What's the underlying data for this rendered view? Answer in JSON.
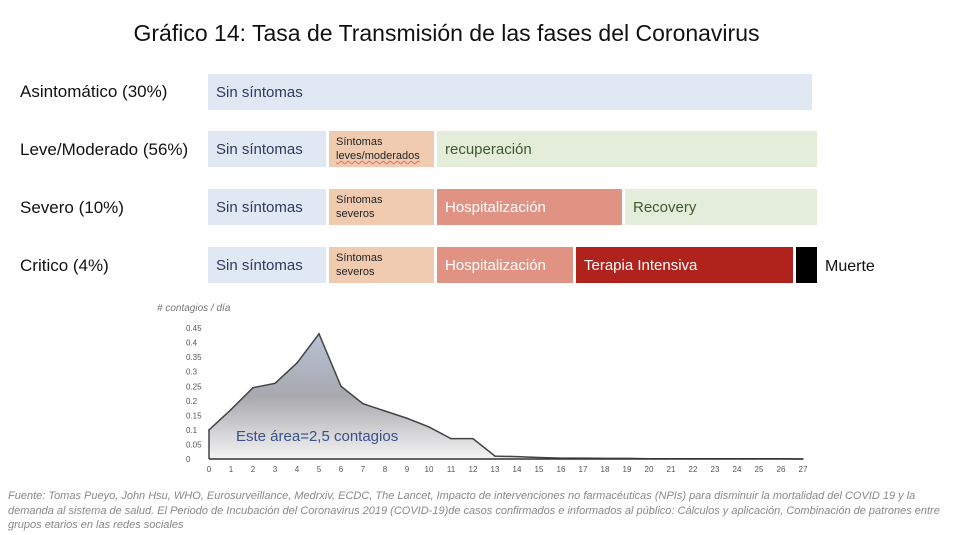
{
  "title": "Gráfico 14: Tasa de Transmisión de las fases del Coronavirus",
  "rows": [
    {
      "label": "Asintomático (30%)",
      "segments": [
        "Sin síntomas"
      ]
    },
    {
      "label": "Leve/Moderado (56%)",
      "segments": [
        "Sin síntomas",
        "Síntomas",
        "leves/moderados",
        "recuperación"
      ]
    },
    {
      "label": "Severo (10%)",
      "segments": [
        "Sin síntomas",
        "Síntomas",
        "severos",
        "Hospitalización",
        "Recovery"
      ]
    },
    {
      "label": "Critico (4%)",
      "segments": [
        "Sin síntomas",
        "Síntomas",
        "severos",
        "Hospitalización",
        "Terapia Intensiva"
      ],
      "end_label": "Muerte"
    }
  ],
  "colors": {
    "sin": "#dfe8f3",
    "sintomas": "#f0cbb0",
    "recuperacion": "#e3edda",
    "hospital": "#e09283",
    "uci": "#b0231c"
  },
  "chart_data": {
    "type": "area",
    "ylabel": "# contagios / día",
    "annotation": "Este área=2,5 contagios",
    "x": [
      0,
      1,
      2,
      3,
      4,
      5,
      6,
      7,
      8,
      9,
      10,
      11,
      12,
      13,
      14,
      15,
      16,
      17,
      18,
      19,
      20,
      21,
      22,
      23,
      24,
      25,
      26,
      27
    ],
    "values": [
      0.1,
      0.17,
      0.245,
      0.26,
      0.33,
      0.43,
      0.25,
      0.19,
      0.165,
      0.14,
      0.11,
      0.07,
      0.07,
      0.01,
      0.008,
      0.005,
      0.003,
      0.003,
      0.002,
      0.002,
      0.001,
      0.001,
      0.001,
      0.001,
      0.001,
      0.001,
      0.001,
      0
    ],
    "yticks": [
      "0",
      "0.05",
      "0.1",
      "0.15",
      "0.2",
      "0.25",
      "0.3",
      "0.35",
      "0.4",
      "0.45"
    ],
    "ylim": [
      0,
      0.45
    ],
    "xlim": [
      0,
      27
    ]
  },
  "footer": "Fuente: Tomas Pueyo, John Hsu, WHO, Eurosurveillance, Medrxiv, ECDC, The Lancet, Impacto de intervenciones no farmacéuticas (NPIs) para disminuir la mortalidad del COVID 19 y la demanda al sistema de salud. El Periodo de Incubación del Coronavirus 2019 (COVID-19)de casos confirmados e informados al público: Cálculos y aplicación, Combinación de patrones entre grupos etarios en las redes sociales"
}
